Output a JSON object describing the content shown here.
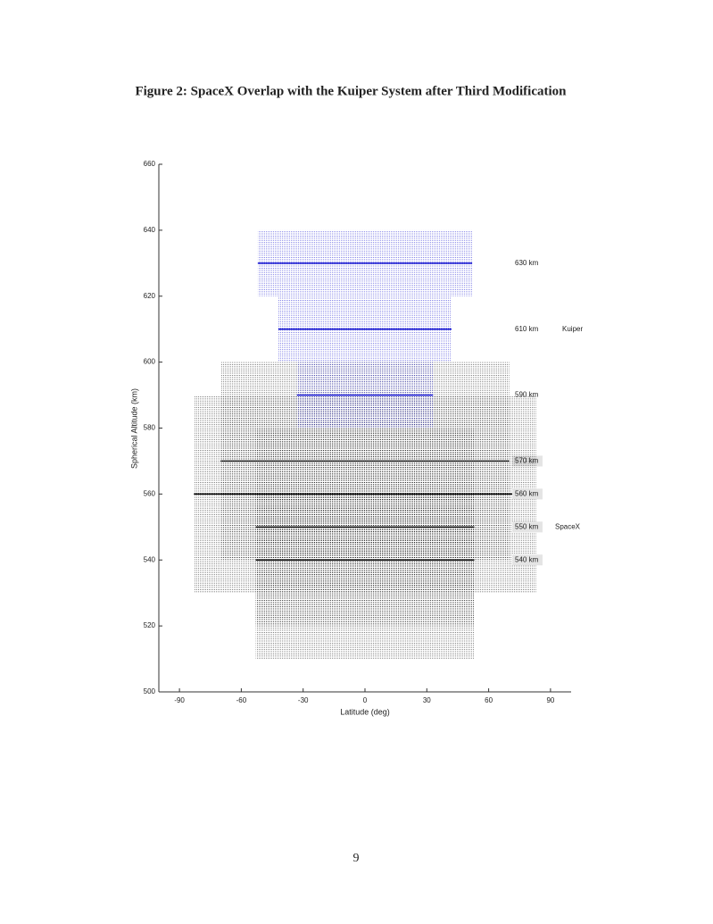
{
  "chart_data": {
    "type": "shell-bands",
    "title": "Figure 2: SpaceX Overlap with the Kuiper System after Third Modification",
    "xlabel": "Latitude (deg)",
    "ylabel": "Spherical Altitude (km)",
    "xlim": [
      -100,
      100
    ],
    "xticks": [
      -90,
      -60,
      -30,
      0,
      30,
      60,
      90
    ],
    "ylim": [
      500,
      660
    ],
    "yticks": [
      500,
      520,
      540,
      560,
      580,
      600,
      620,
      640,
      660
    ],
    "series": [
      {
        "name": "SpaceX",
        "color": "#000000",
        "label_background": "#e4e4e4",
        "shells": [
          {
            "label": "570 km",
            "altitude": 570,
            "latitude": 70,
            "range": [
              540,
              600
            ]
          },
          {
            "label": "560 km",
            "altitude": 560,
            "latitude": 83,
            "range": [
              530,
              590
            ]
          },
          {
            "label": "550 km",
            "altitude": 550,
            "latitude": 53,
            "range": [
              510,
              580
            ]
          },
          {
            "label": "540 km",
            "altitude": 540,
            "latitude": 53,
            "range": [
              520,
              560
            ]
          }
        ]
      },
      {
        "name": "Kuiper",
        "color": "#0000cc",
        "shells": [
          {
            "label": "630 km",
            "altitude": 630,
            "latitude": 52,
            "range": [
              620,
              640
            ]
          },
          {
            "label": "610 km",
            "altitude": 610,
            "latitude": 42,
            "range": [
              600,
              620
            ]
          },
          {
            "label": "590 km",
            "altitude": 590,
            "latitude": 33,
            "range": [
              580,
              600
            ]
          }
        ]
      }
    ]
  },
  "page_number": 9
}
